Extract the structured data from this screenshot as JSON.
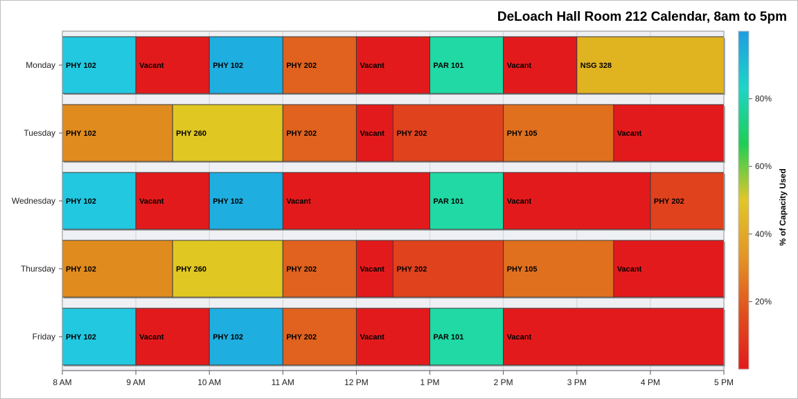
{
  "chart_data": {
    "type": "gantt",
    "title": "DeLoach Hall Room 212 Calendar, 8am to 5pm",
    "days": [
      "Monday",
      "Tuesday",
      "Wednesday",
      "Thursday",
      "Friday"
    ],
    "x_ticks": [
      "8 AM",
      "9 AM",
      "10 AM",
      "11 AM",
      "12 PM",
      "1 PM",
      "2 PM",
      "3 PM",
      "4 PM",
      "5 PM"
    ],
    "x_range_hours": [
      8,
      17
    ],
    "grid": true,
    "colorbar": {
      "label": "% of Capacity Used",
      "ticks": [
        "20%",
        "40%",
        "60%",
        "80%"
      ],
      "tick_values": [
        20,
        40,
        60,
        80
      ],
      "range": [
        0,
        100
      ],
      "placement": "right",
      "colors": [
        "#e31a1c",
        "#e0501e",
        "#e39527",
        "#e2c62a",
        "#1fce55",
        "#1ed4c8",
        "#1e9de0"
      ]
    },
    "schedule": [
      {
        "day": "Monday",
        "blocks": [
          {
            "label": "PHY 102",
            "start": 8,
            "end": 9,
            "color": "#22c8e0"
          },
          {
            "label": "Vacant",
            "start": 9,
            "end": 10,
            "color": "#e31a1c"
          },
          {
            "label": "PHY 102",
            "start": 10,
            "end": 11,
            "color": "#1eaee0"
          },
          {
            "label": "PHY 202",
            "start": 11,
            "end": 12,
            "color": "#e0621e"
          },
          {
            "label": "Vacant",
            "start": 12,
            "end": 13,
            "color": "#e31a1c"
          },
          {
            "label": "PAR 101",
            "start": 13,
            "end": 14,
            "color": "#20d9a5"
          },
          {
            "label": "Vacant",
            "start": 14,
            "end": 15,
            "color": "#e31a1c"
          },
          {
            "label": "NSG 328",
            "start": 15,
            "end": 17,
            "color": "#e0b321"
          }
        ]
      },
      {
        "day": "Tuesday",
        "blocks": [
          {
            "label": "PHY 102",
            "start": 8,
            "end": 9.5,
            "color": "#e08b1e"
          },
          {
            "label": "PHY 260",
            "start": 9.5,
            "end": 11,
            "color": "#e0c721"
          },
          {
            "label": "PHY 202",
            "start": 11,
            "end": 12,
            "color": "#e0621e"
          },
          {
            "label": "Vacant",
            "start": 12,
            "end": 12.5,
            "color": "#e31a1c"
          },
          {
            "label": "PHY 202",
            "start": 12.5,
            "end": 14,
            "color": "#e0421e"
          },
          {
            "label": "PHY 105",
            "start": 14,
            "end": 15.5,
            "color": "#e0701e"
          },
          {
            "label": "Vacant",
            "start": 15.5,
            "end": 17,
            "color": "#e31a1c"
          }
        ]
      },
      {
        "day": "Wednesday",
        "blocks": [
          {
            "label": "PHY 102",
            "start": 8,
            "end": 9,
            "color": "#22c8e0"
          },
          {
            "label": "Vacant",
            "start": 9,
            "end": 10,
            "color": "#e31a1c"
          },
          {
            "label": "PHY 102",
            "start": 10,
            "end": 11,
            "color": "#1eaee0"
          },
          {
            "label": "Vacant",
            "start": 11,
            "end": 13,
            "color": "#e31a1c"
          },
          {
            "label": "PAR 101",
            "start": 13,
            "end": 14,
            "color": "#20d9a5"
          },
          {
            "label": "Vacant",
            "start": 14,
            "end": 16,
            "color": "#e31a1c"
          },
          {
            "label": "PHY 202",
            "start": 16,
            "end": 17,
            "color": "#e0421e"
          }
        ]
      },
      {
        "day": "Thursday",
        "blocks": [
          {
            "label": "PHY 102",
            "start": 8,
            "end": 9.5,
            "color": "#e08b1e"
          },
          {
            "label": "PHY 260",
            "start": 9.5,
            "end": 11,
            "color": "#e0c721"
          },
          {
            "label": "PHY 202",
            "start": 11,
            "end": 12,
            "color": "#e0621e"
          },
          {
            "label": "Vacant",
            "start": 12,
            "end": 12.5,
            "color": "#e31a1c"
          },
          {
            "label": "PHY 202",
            "start": 12.5,
            "end": 14,
            "color": "#e0421e"
          },
          {
            "label": "PHY 105",
            "start": 14,
            "end": 15.5,
            "color": "#e0701e"
          },
          {
            "label": "Vacant",
            "start": 15.5,
            "end": 17,
            "color": "#e31a1c"
          }
        ]
      },
      {
        "day": "Friday",
        "blocks": [
          {
            "label": "PHY 102",
            "start": 8,
            "end": 9,
            "color": "#22c8e0"
          },
          {
            "label": "Vacant",
            "start": 9,
            "end": 10,
            "color": "#e31a1c"
          },
          {
            "label": "PHY 102",
            "start": 10,
            "end": 11,
            "color": "#1eaee0"
          },
          {
            "label": "PHY 202",
            "start": 11,
            "end": 12,
            "color": "#e0621e"
          },
          {
            "label": "Vacant",
            "start": 12,
            "end": 13,
            "color": "#e31a1c"
          },
          {
            "label": "PAR 101",
            "start": 13,
            "end": 14,
            "color": "#20d9a5"
          },
          {
            "label": "Vacant",
            "start": 14,
            "end": 17,
            "color": "#e31a1c"
          }
        ]
      }
    ]
  }
}
